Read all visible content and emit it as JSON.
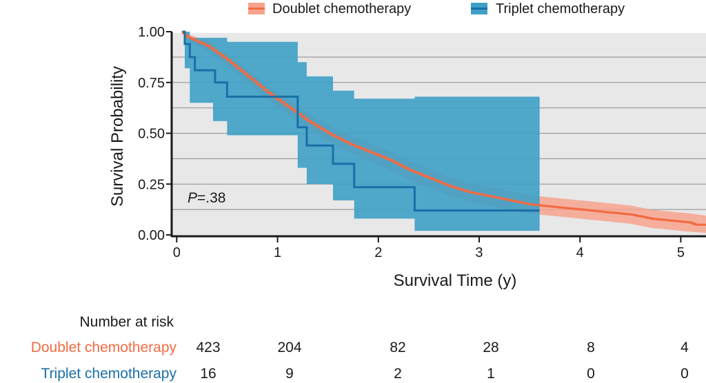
{
  "chart_data": {
    "type": "line",
    "subtype": "kaplan-meier",
    "xlabel": "Survival Time (y)",
    "ylabel": "Survival Probability",
    "xlim": [
      -0.05,
      5.25
    ],
    "ylim": [
      0.0,
      1.0
    ],
    "x_ticks": [
      {
        "value": 0,
        "label": "0"
      },
      {
        "value": 1,
        "label": "1"
      },
      {
        "value": 2,
        "label": "2"
      },
      {
        "value": 3,
        "label": "3"
      },
      {
        "value": 4,
        "label": "4"
      },
      {
        "value": 5,
        "label": "5"
      }
    ],
    "y_ticks": [
      {
        "value": 0.0,
        "label": "0.00"
      },
      {
        "value": 0.25,
        "label": "0.25"
      },
      {
        "value": 0.5,
        "label": "0.50"
      },
      {
        "value": 0.75,
        "label": "0.75"
      },
      {
        "value": 1.0,
        "label": "1.00"
      }
    ],
    "grid_values": [
      0.125,
      0.25,
      0.375,
      0.5,
      0.625,
      0.75,
      0.875
    ],
    "annotation": {
      "italic": "P",
      "rest": "=.38"
    },
    "series": [
      {
        "name": "Doublet chemotherapy",
        "color": "#f26b43",
        "band_color": "#f7a38e",
        "curve": [
          [
            0.05,
            1.0
          ],
          [
            0.12,
            0.97
          ],
          [
            0.3,
            0.93
          ],
          [
            0.5,
            0.86
          ],
          [
            0.7,
            0.78
          ],
          [
            0.9,
            0.7
          ],
          [
            1.1,
            0.63
          ],
          [
            1.3,
            0.56
          ],
          [
            1.5,
            0.5
          ],
          [
            1.7,
            0.45
          ],
          [
            1.9,
            0.41
          ],
          [
            2.1,
            0.37
          ],
          [
            2.3,
            0.32
          ],
          [
            2.5,
            0.28
          ],
          [
            2.7,
            0.24
          ],
          [
            2.9,
            0.21
          ],
          [
            3.1,
            0.19
          ],
          [
            3.3,
            0.17
          ],
          [
            3.5,
            0.15
          ],
          [
            3.7,
            0.14
          ],
          [
            3.9,
            0.13
          ],
          [
            4.1,
            0.12
          ],
          [
            4.3,
            0.11
          ],
          [
            4.5,
            0.1
          ],
          [
            4.7,
            0.08
          ],
          [
            4.9,
            0.07
          ],
          [
            5.1,
            0.06
          ],
          [
            5.15,
            0.05
          ],
          [
            5.25,
            0.05
          ]
        ],
        "upper": [
          [
            0.05,
            1.0
          ],
          [
            0.12,
            0.985
          ],
          [
            0.3,
            0.955
          ],
          [
            0.5,
            0.885
          ],
          [
            0.7,
            0.81
          ],
          [
            0.9,
            0.735
          ],
          [
            1.1,
            0.665
          ],
          [
            1.3,
            0.6
          ],
          [
            1.5,
            0.54
          ],
          [
            1.7,
            0.49
          ],
          [
            1.9,
            0.455
          ],
          [
            2.1,
            0.415
          ],
          [
            2.3,
            0.365
          ],
          [
            2.5,
            0.325
          ],
          [
            2.7,
            0.285
          ],
          [
            2.9,
            0.255
          ],
          [
            3.1,
            0.235
          ],
          [
            3.3,
            0.215
          ],
          [
            3.5,
            0.195
          ],
          [
            3.7,
            0.185
          ],
          [
            3.9,
            0.175
          ],
          [
            4.1,
            0.165
          ],
          [
            4.3,
            0.155
          ],
          [
            4.5,
            0.145
          ],
          [
            4.7,
            0.125
          ],
          [
            4.9,
            0.115
          ],
          [
            5.1,
            0.105
          ],
          [
            5.25,
            0.095
          ]
        ],
        "lower": [
          [
            0.05,
            1.0
          ],
          [
            0.12,
            0.955
          ],
          [
            0.3,
            0.905
          ],
          [
            0.5,
            0.835
          ],
          [
            0.7,
            0.75
          ],
          [
            0.9,
            0.665
          ],
          [
            1.1,
            0.595
          ],
          [
            1.3,
            0.52
          ],
          [
            1.5,
            0.46
          ],
          [
            1.7,
            0.41
          ],
          [
            1.9,
            0.365
          ],
          [
            2.1,
            0.325
          ],
          [
            2.3,
            0.275
          ],
          [
            2.5,
            0.235
          ],
          [
            2.7,
            0.195
          ],
          [
            2.9,
            0.165
          ],
          [
            3.1,
            0.145
          ],
          [
            3.3,
            0.125
          ],
          [
            3.5,
            0.105
          ],
          [
            3.7,
            0.095
          ],
          [
            3.9,
            0.085
          ],
          [
            4.1,
            0.075
          ],
          [
            4.3,
            0.065
          ],
          [
            4.5,
            0.055
          ],
          [
            4.7,
            0.035
          ],
          [
            4.9,
            0.025
          ],
          [
            5.1,
            0.015
          ],
          [
            5.25,
            0.01
          ]
        ],
        "risk": [
          "423",
          "204",
          "82",
          "28",
          "8",
          "4"
        ]
      },
      {
        "name": "Triplet chemotherapy",
        "color": "#1a6fa8",
        "band_color": "#3ea0c6",
        "steps": [
          [
            0.06,
            1.0
          ],
          [
            0.08,
            0.94
          ],
          [
            0.13,
            0.875
          ],
          [
            0.18,
            0.81
          ],
          [
            0.38,
            0.75
          ],
          [
            0.5,
            0.68
          ],
          [
            1.2,
            0.53
          ],
          [
            1.29,
            0.44
          ],
          [
            1.55,
            0.35
          ],
          [
            1.76,
            0.235
          ],
          [
            2.36,
            0.12
          ],
          [
            3.6,
            0.12
          ]
        ],
        "band_steps": [
          [
            0.06,
            1.0,
            1.0
          ],
          [
            0.08,
            1.0,
            0.82
          ],
          [
            0.13,
            0.97,
            0.65
          ],
          [
            0.36,
            0.97,
            0.56
          ],
          [
            0.5,
            0.95,
            0.49
          ],
          [
            1.2,
            0.85,
            0.33
          ],
          [
            1.29,
            0.78,
            0.25
          ],
          [
            1.55,
            0.71,
            0.17
          ],
          [
            1.76,
            0.67,
            0.08
          ],
          [
            2.36,
            0.68,
            0.02
          ],
          [
            3.6,
            0.68,
            0.02
          ]
        ],
        "risk": [
          "16",
          "9",
          "2",
          "1",
          "0",
          "0"
        ]
      }
    ],
    "risk_table": {
      "title": "Number at risk",
      "columns": [
        0,
        1,
        2,
        3,
        4,
        5
      ]
    }
  }
}
